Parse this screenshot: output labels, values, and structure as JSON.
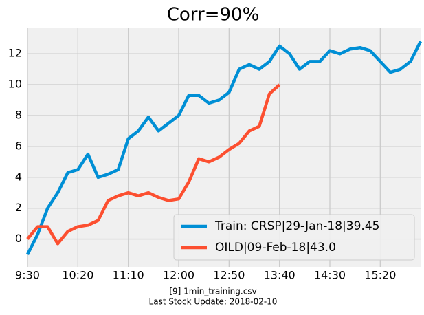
{
  "chart_data": {
    "type": "line",
    "title": "Corr=90%",
    "xlabel": [
      "[9] 1min_training.csv",
      "Last Stock Update: 2018-02-10"
    ],
    "x": [
      "9:30",
      "9:40",
      "9:50",
      "10:00",
      "10:10",
      "10:20",
      "10:30",
      "10:40",
      "10:50",
      "11:00",
      "11:10",
      "11:20",
      "11:30",
      "11:40",
      "11:50",
      "12:00",
      "12:10",
      "12:20",
      "12:30",
      "12:40",
      "12:50",
      "13:00",
      "13:10",
      "13:20",
      "13:30",
      "13:40",
      "13:50",
      "14:00",
      "14:10",
      "14:20",
      "14:30",
      "14:40",
      "14:50",
      "15:00",
      "15:10",
      "15:20",
      "15:30",
      "15:40",
      "15:50",
      "16:00"
    ],
    "series": [
      {
        "name": "Train: CRSP|29-Jan-18|39.45",
        "color": "#008fd5",
        "values": [
          -1,
          0.3,
          2,
          3,
          4.3,
          4.5,
          5.5,
          4,
          4.2,
          4.5,
          6.5,
          7,
          7.9,
          7,
          7.5,
          8,
          9.3,
          9.3,
          8.8,
          9,
          9.5,
          11,
          11.3,
          11,
          11.5,
          12.5,
          12,
          11,
          11.5,
          11.5,
          12.2,
          12,
          12.3,
          12.4,
          12.2,
          11.5,
          10.8,
          11,
          11.5,
          12.8
        ]
      },
      {
        "name": "OILD|09-Feb-18|43.0",
        "color": "#fc4f30",
        "values": [
          0,
          0.8,
          0.8,
          -0.3,
          0.5,
          0.8,
          0.9,
          1.2,
          2.5,
          2.8,
          3,
          2.8,
          3,
          2.7,
          2.5,
          2.6,
          3.7,
          5.2,
          5,
          5.3,
          5.8,
          6.2,
          7,
          7.3,
          9.4,
          10,
          null,
          null,
          null,
          null,
          null,
          null,
          null,
          null,
          null,
          null,
          null,
          null,
          null,
          null
        ]
      }
    ],
    "xlim": [
      "9:30",
      "16:00"
    ],
    "xticks": [
      "9:30",
      "10:20",
      "11:10",
      "12:00",
      "12:50",
      "13:40",
      "14:30",
      "15:20"
    ],
    "ylim": [
      -1.8,
      13.7
    ],
    "yticks": [
      0,
      2,
      4,
      6,
      8,
      10,
      12
    ],
    "grid": true,
    "legend": "lower right"
  }
}
